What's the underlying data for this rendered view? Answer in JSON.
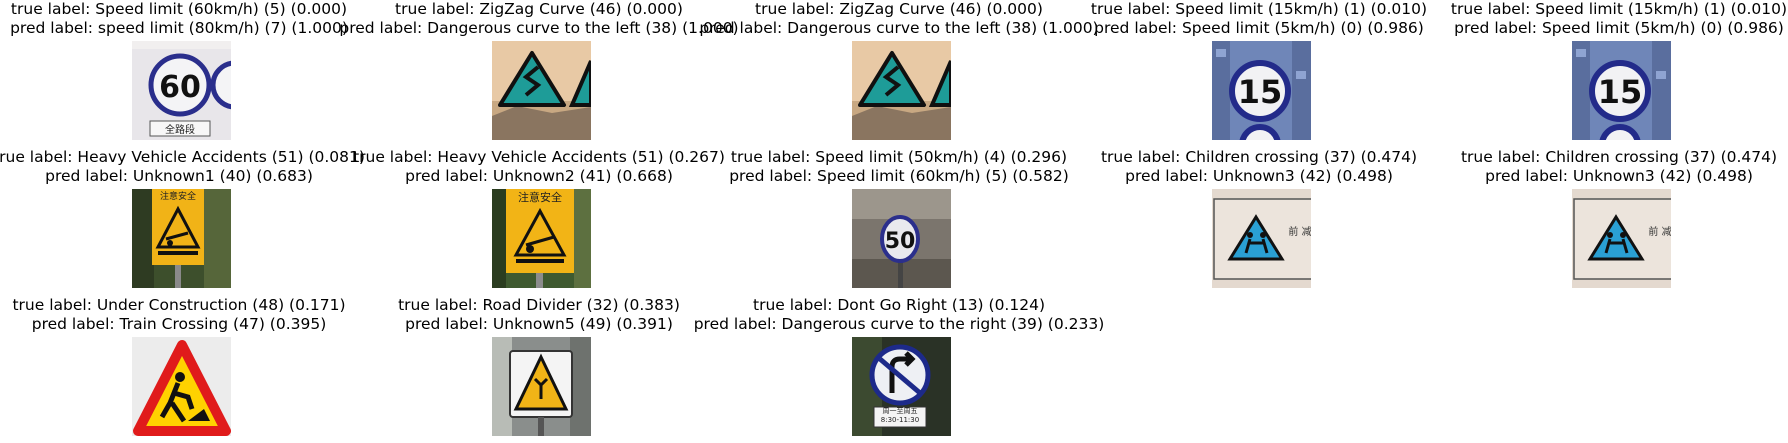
{
  "grid": [
    {
      "true_label": "true label: Speed limit (60km/h) (5) (0.000)",
      "pred_label": "pred label: speed limit (80km/h) (7) (1.000)",
      "sign_text": "60",
      "plate_text": "全路段"
    },
    {
      "true_label": "true label: ZigZag Curve (46) (0.000)",
      "pred_label": "pred label: Dangerous curve to the left (38) (1.000)"
    },
    {
      "true_label": "true label: ZigZag Curve (46) (0.000)",
      "pred_label": "pred label: Dangerous curve to the left (38) (1.000)"
    },
    {
      "true_label": "true label: Speed limit (15km/h) (1) (0.010)",
      "pred_label": "pred label: Speed limit (5km/h) (0) (0.986)",
      "sign_text": "15"
    },
    {
      "true_label": "true label: Speed limit (15km/h) (1) (0.010)",
      "pred_label": "pred label: Speed limit (5km/h) (0) (0.986)",
      "sign_text": "15"
    },
    {
      "true_label": "true label: Heavy Vehicle Accidents (51) (0.081)",
      "pred_label": "pred label: Unknown1 (40) (0.683)",
      "sign_text": "注意安全"
    },
    {
      "true_label": "true label: Heavy Vehicle Accidents (51) (0.267)",
      "pred_label": "pred label: Unknown2 (41) (0.668)",
      "sign_text": "注意安全"
    },
    {
      "true_label": "true label: Speed limit (50km/h) (4) (0.296)",
      "pred_label": "pred label: Speed limit (60km/h) (5) (0.582)",
      "sign_text": "50"
    },
    {
      "true_label": "true label: Children crossing (37) (0.474)",
      "pred_label": "pred label: Unknown3 (42) (0.498)",
      "sign_text": "前 减"
    },
    {
      "true_label": "true label: Children crossing (37) (0.474)",
      "pred_label": "pred label: Unknown3 (42) (0.498)",
      "sign_text": "前 减"
    },
    {
      "true_label": "true label: Under Construction (48) (0.171)",
      "pred_label": "pred label: Train Crossing (47) (0.395)"
    },
    {
      "true_label": "true label: Road Divider (32) (0.383)",
      "pred_label": "pred label: Unknown5 (49) (0.391)"
    },
    {
      "true_label": "true label: Dont Go Right (13) (0.124)",
      "pred_label": "pred label: Dangerous curve to the right (39) (0.233)",
      "plate_text": "周一至周五 8:30-11:30"
    }
  ]
}
